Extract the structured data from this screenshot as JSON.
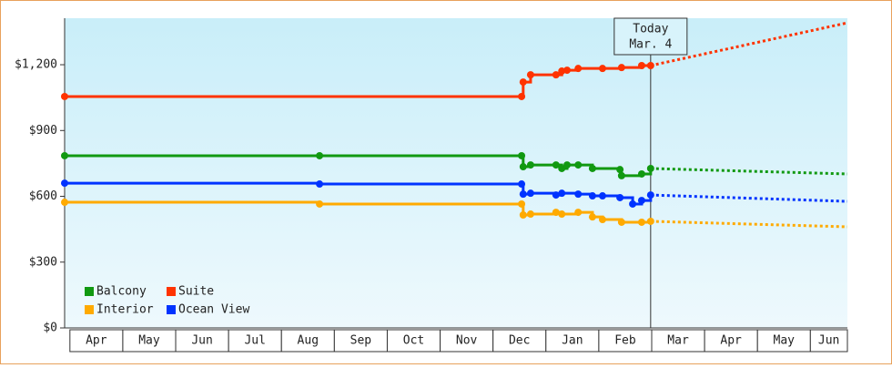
{
  "chart_data": {
    "type": "line",
    "step": true,
    "categories": [
      "Apr",
      "May",
      "Jun",
      "Jul",
      "Aug",
      "Sep",
      "Oct",
      "Nov",
      "Dec",
      "Jan",
      "Feb",
      "Mar",
      "Apr",
      "May",
      "Jun"
    ],
    "xlim": [
      -0.1,
      14.7
    ],
    "ylim": [
      0,
      1412
    ],
    "yticks": [
      {
        "value": 0,
        "label": "$0"
      },
      {
        "value": 300,
        "label": "$300"
      },
      {
        "value": 600,
        "label": "$600"
      },
      {
        "value": 900,
        "label": "$900"
      },
      {
        "value": 1200,
        "label": "$1,200"
      }
    ],
    "annotation": {
      "lines": [
        "Today",
        "Mar. 4"
      ],
      "x": 10.98
    },
    "series": [
      {
        "name": "Balcony",
        "color": "#119911",
        "x": [
          -0.1,
          4.72,
          8.54,
          8.57,
          8.71,
          9.19,
          9.3,
          9.4,
          9.61,
          9.88,
          10.4,
          10.43,
          10.81,
          10.98
        ],
        "values": [
          785,
          785,
          785,
          735,
          743,
          743,
          727,
          743,
          743,
          727,
          722,
          694,
          702,
          727
        ],
        "forecast": {
          "x": [
            10.98,
            14.7
          ],
          "values": [
            727,
            702
          ]
        }
      },
      {
        "name": "Suite",
        "color": "#ff3300",
        "x": [
          -0.1,
          8.54,
          8.57,
          8.71,
          9.19,
          9.3,
          9.4,
          9.61,
          10.07,
          10.43,
          10.81,
          10.98
        ],
        "values": [
          1055,
          1055,
          1121,
          1154,
          1154,
          1171,
          1175,
          1183,
          1183,
          1187,
          1196,
          1196
        ],
        "forecast": {
          "x": [
            10.98,
            14.7
          ],
          "values": [
            1196,
            1391
          ]
        }
      },
      {
        "name": "Interior",
        "color": "#ffaa00",
        "x": [
          -0.1,
          4.72,
          8.54,
          8.57,
          8.71,
          9.19,
          9.3,
          9.61,
          9.88,
          10.07,
          10.43,
          10.81,
          10.98
        ],
        "values": [
          573,
          565,
          565,
          515,
          519,
          527,
          519,
          527,
          506,
          494,
          482,
          482,
          486
        ],
        "forecast": {
          "x": [
            10.98,
            14.7
          ],
          "values": [
            486,
            461
          ]
        }
      },
      {
        "name": "Ocean View",
        "color": "#0033ff",
        "x": [
          -0.1,
          4.72,
          8.54,
          8.57,
          8.71,
          9.19,
          9.3,
          9.61,
          9.88,
          10.07,
          10.4,
          10.64,
          10.81,
          10.98
        ],
        "values": [
          660,
          656,
          656,
          610,
          614,
          606,
          614,
          610,
          602,
          602,
          594,
          565,
          581,
          606
        ],
        "forecast": {
          "x": [
            10.98,
            14.7
          ],
          "values": [
            606,
            577
          ]
        }
      }
    ]
  }
}
